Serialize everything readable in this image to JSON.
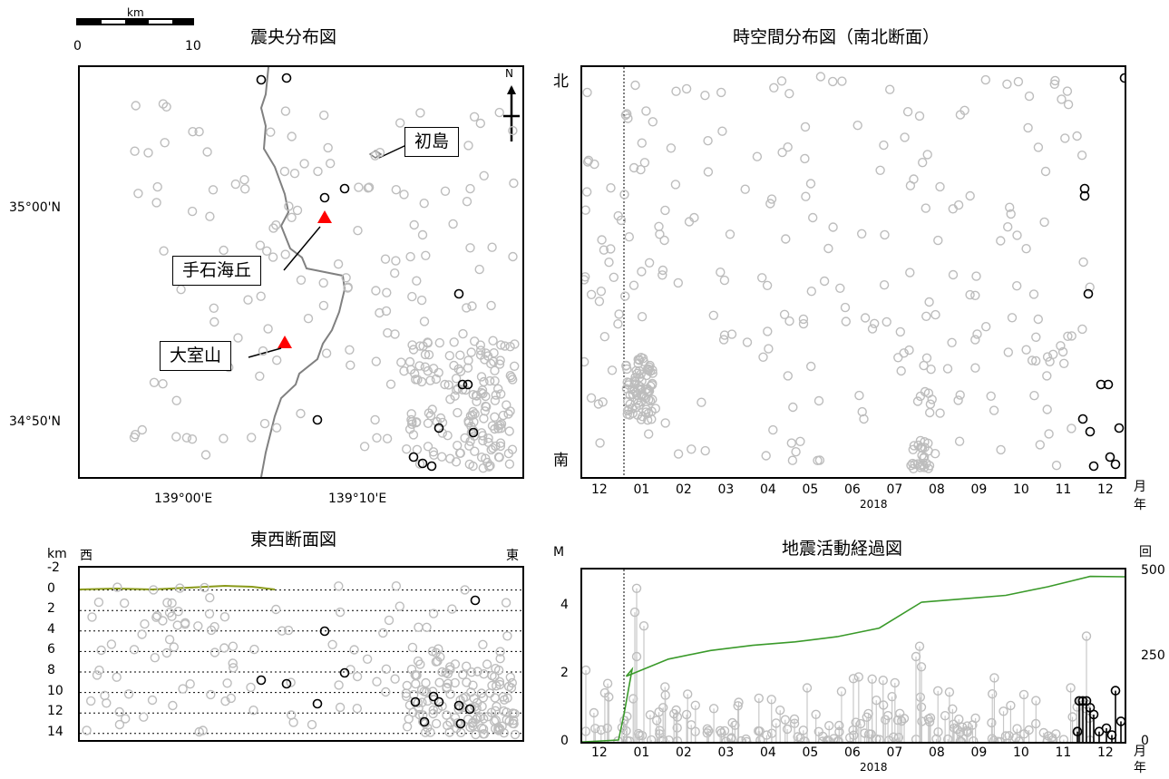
{
  "scale_bar": {
    "unit": "km",
    "ticks": [
      "0",
      "10"
    ]
  },
  "map": {
    "title": "震央分布図",
    "lat_labels": [
      "35°00'N",
      "34°50'N"
    ],
    "lon_labels": [
      "139°00'E",
      "139°10'E"
    ],
    "north": "N",
    "places": [
      {
        "label": "初島",
        "kind": "island"
      },
      {
        "label": "手石海丘",
        "kind": "volcano"
      },
      {
        "label": "大室山",
        "kind": "volcano"
      }
    ]
  },
  "spacetime": {
    "title": "時空間分布図（南北断面）",
    "north_label": "北",
    "south_label": "南",
    "month_ticks": [
      "12",
      "01",
      "02",
      "03",
      "04",
      "05",
      "06",
      "07",
      "08",
      "09",
      "10",
      "11",
      "12"
    ],
    "year": "2018",
    "axis_month": "月",
    "axis_year": "年"
  },
  "ew_section": {
    "title": "東西断面図",
    "unit": "km",
    "west": "西",
    "east": "東",
    "depth_ticks": [
      "-2",
      "0",
      "2",
      "4",
      "6",
      "8",
      "10",
      "12",
      "14"
    ]
  },
  "mt_plot": {
    "title": "地震活動経過図",
    "left_unit": "M",
    "right_unit": "回",
    "m_ticks": [
      "0",
      "2",
      "4"
    ],
    "count_ticks": [
      "0",
      "250",
      "500"
    ],
    "month_ticks": [
      "12",
      "01",
      "02",
      "03",
      "04",
      "05",
      "06",
      "07",
      "08",
      "09",
      "10",
      "11",
      "12"
    ],
    "year": "2018",
    "axis_month": "月",
    "axis_year": "年"
  },
  "chart_data": [
    {
      "type": "scatter",
      "title": "震央分布図",
      "xlabel": "",
      "ylabel": "",
      "note": "epicenter map; gray = earlier events, black = recent events"
    },
    {
      "type": "scatter",
      "title": "時空間分布図（南北断面）",
      "x": "time (2017-12 to 2018-12)",
      "y": "latitude (南 to 北)"
    },
    {
      "type": "scatter",
      "title": "東西断面図",
      "ylabel": "km",
      "ylim": [
        -2,
        14
      ]
    },
    {
      "type": "line",
      "title": "地震活動経過図",
      "ylabel": "M",
      "ylim": [
        0,
        5
      ],
      "y2lim": [
        0,
        500
      ],
      "series": [
        {
          "name": "",
          "x": [
            "2017-12",
            "2018-01",
            "2018-02",
            "2018-03",
            "2018-04",
            "2018-05",
            "2018-06",
            "2018-07",
            "2018-08",
            "2018-09",
            "2018-10",
            "2018-11",
            "2018-12"
          ],
          "values": [
            0,
            190,
            240,
            265,
            280,
            290,
            305,
            330,
            405,
            415,
            425,
            450,
            480
          ]
        }
      ]
    }
  ]
}
